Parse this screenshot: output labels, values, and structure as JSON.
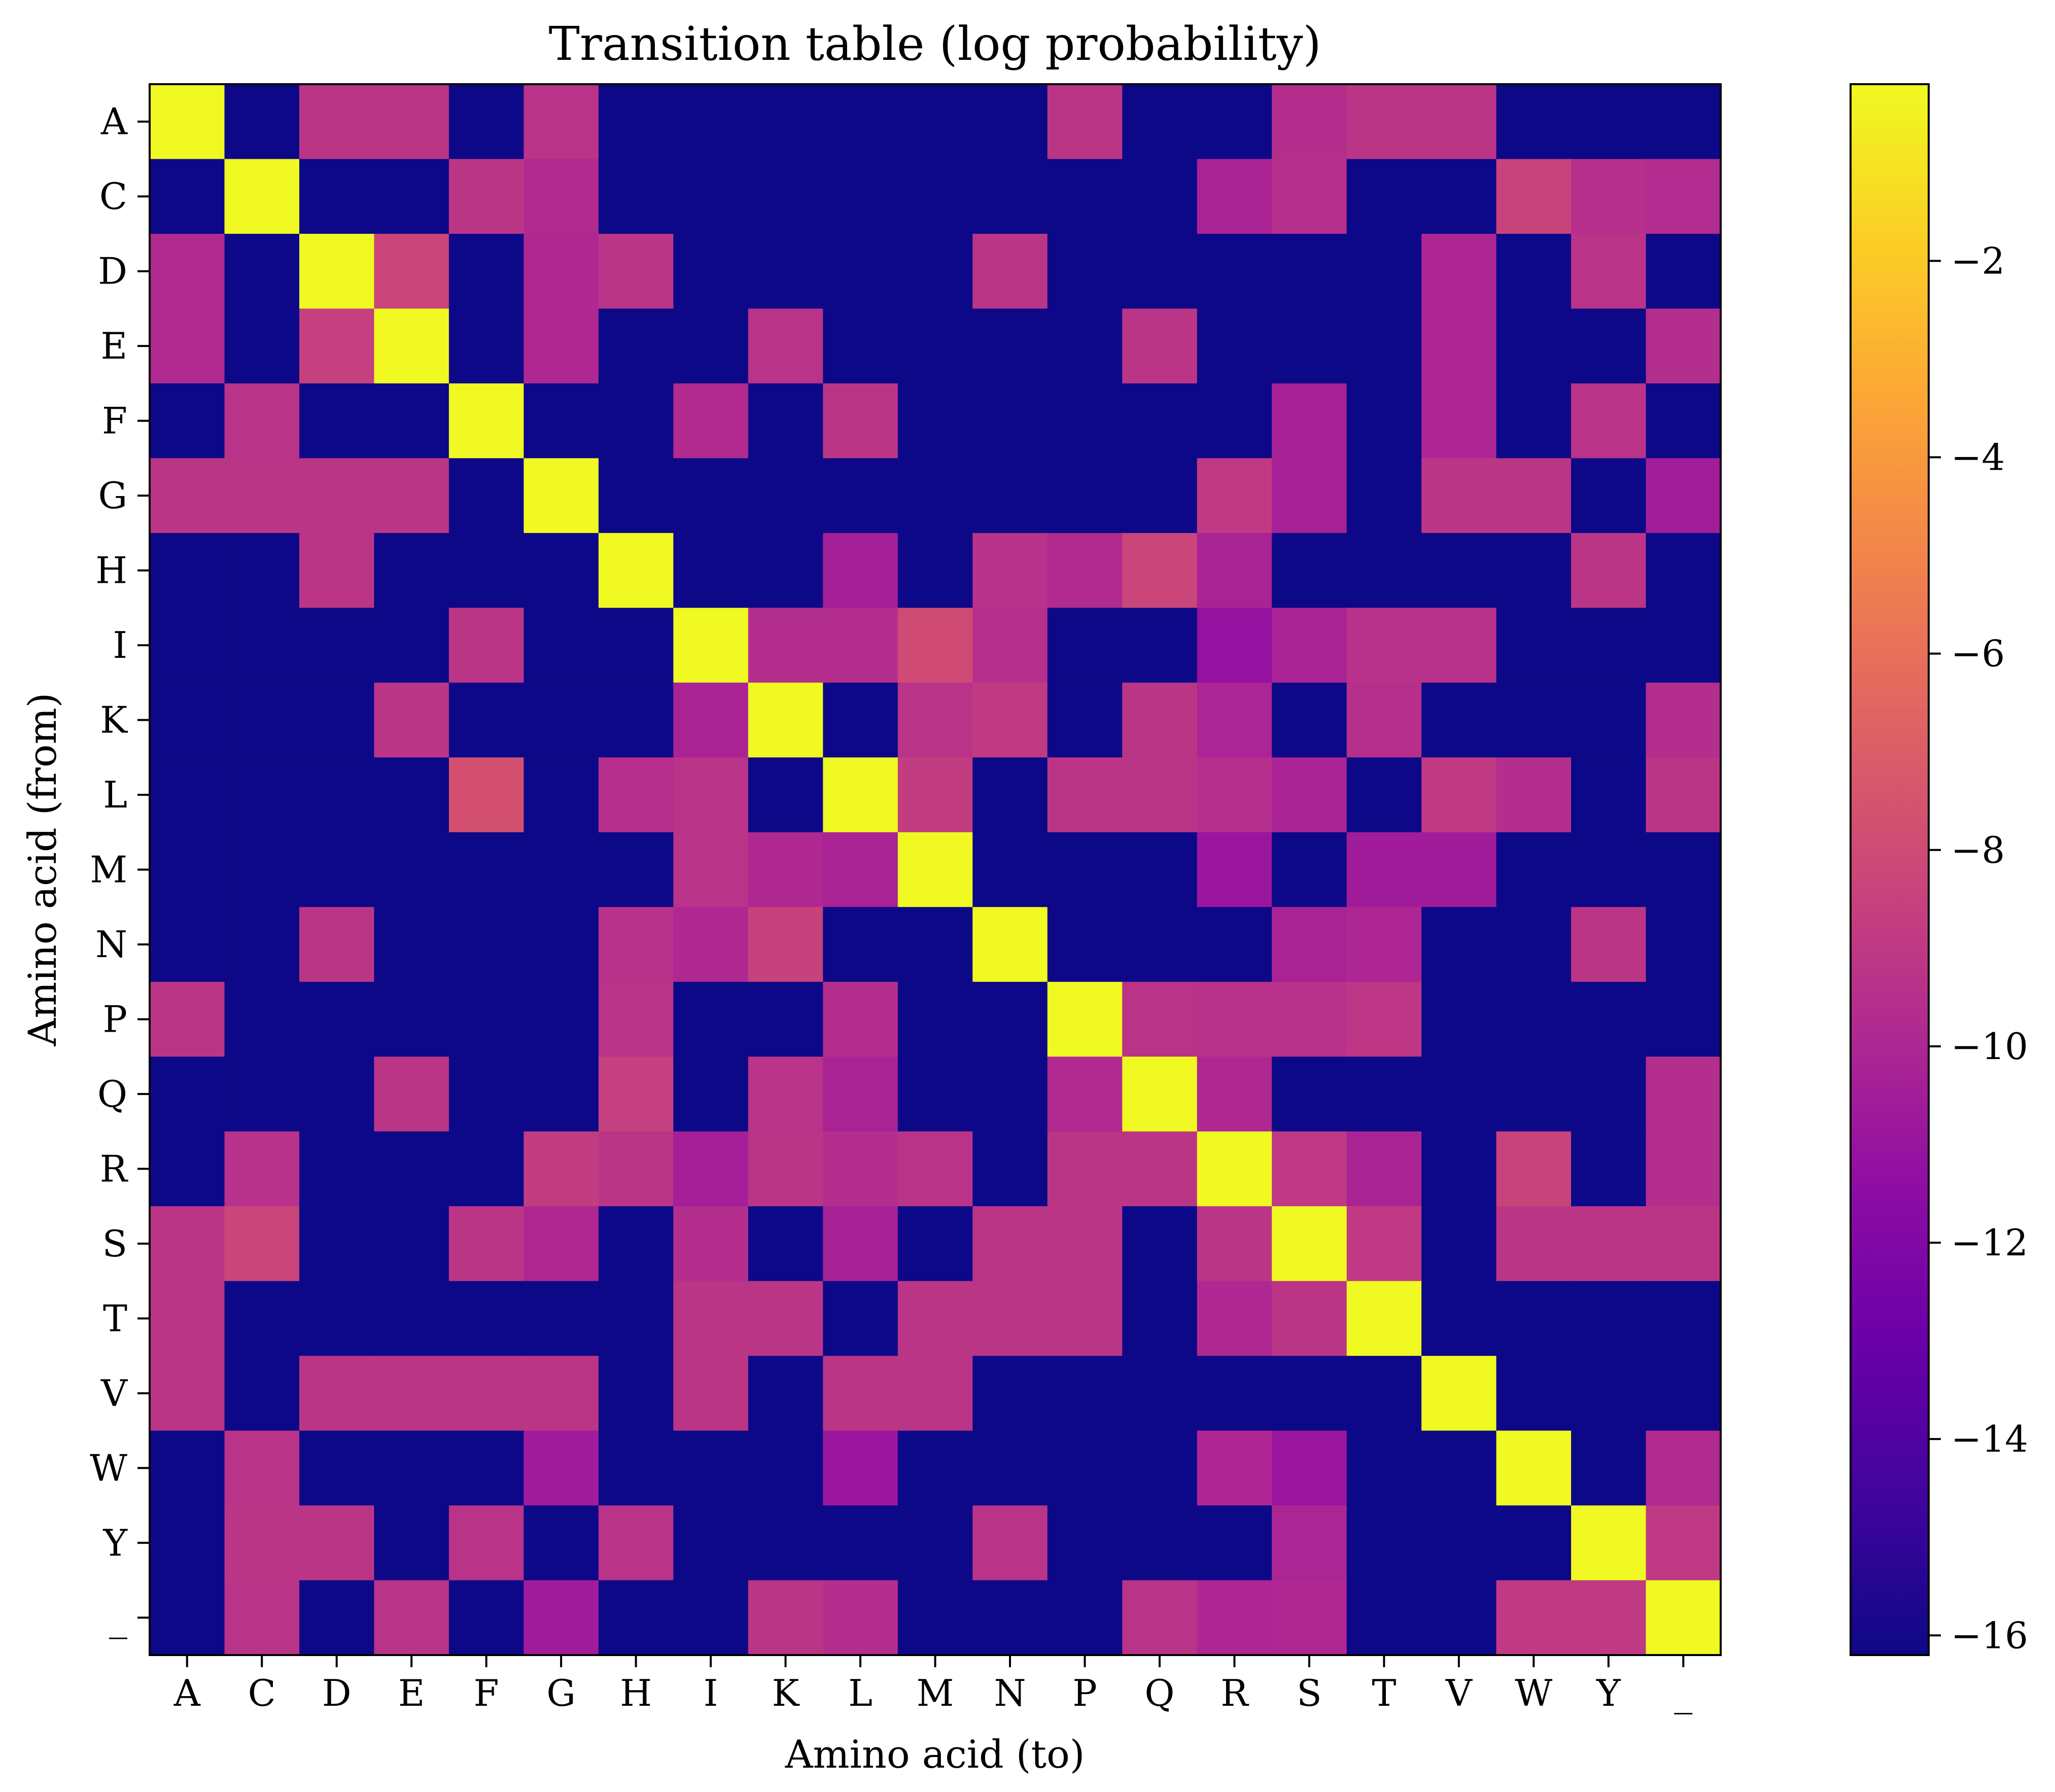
{
  "chart_data": {
    "type": "heatmap",
    "title": "Transition table (log probability)",
    "xlabel": "Amino acid (to)",
    "ylabel": "Amino acid (from)",
    "row_labels": [
      "A",
      "C",
      "D",
      "E",
      "F",
      "G",
      "H",
      "I",
      "K",
      "L",
      "M",
      "N",
      "P",
      "Q",
      "R",
      "S",
      "T",
      "V",
      "W",
      "Y",
      "_"
    ],
    "col_labels": [
      "A",
      "C",
      "D",
      "E",
      "F",
      "G",
      "H",
      "I",
      "K",
      "L",
      "M",
      "N",
      "P",
      "Q",
      "R",
      "S",
      "T",
      "V",
      "W",
      "Y",
      "_"
    ],
    "colormap": "plasma",
    "vmin": -16.2,
    "vmax": -0.2,
    "colorbar": {
      "ticks": [
        -2,
        -4,
        -6,
        -8,
        -10,
        -12,
        -14,
        -16
      ],
      "tick_labels": [
        "−2",
        "−4",
        "−6",
        "−8",
        "−10",
        "−12",
        "−14",
        "−16"
      ]
    },
    "values": [
      [
        -0.2,
        -16.2,
        -9.2,
        -9.2,
        -16.2,
        -9.3,
        -16.2,
        -16.2,
        -16.2,
        -16.2,
        -16.2,
        -16.2,
        -9.2,
        -16.2,
        -16.2,
        -9.6,
        -9.2,
        -9.2,
        -16.2,
        -16.2,
        -16.2
      ],
      [
        -16.2,
        -0.2,
        -16.2,
        -16.2,
        -9.2,
        -9.8,
        -16.2,
        -16.2,
        -16.2,
        -16.2,
        -16.2,
        -16.2,
        -16.2,
        -16.2,
        -10.2,
        -9.5,
        -16.2,
        -16.2,
        -8.4,
        -9.5,
        -9.7
      ],
      [
        -9.8,
        -16.2,
        -0.2,
        -8.3,
        -16.2,
        -9.9,
        -9.2,
        -16.2,
        -16.2,
        -16.2,
        -16.2,
        -9.2,
        -16.2,
        -16.2,
        -16.2,
        -16.2,
        -16.2,
        -10.0,
        -16.2,
        -9.3,
        -16.2
      ],
      [
        -9.8,
        -16.2,
        -8.6,
        -0.2,
        -16.2,
        -9.9,
        -16.2,
        -16.2,
        -9.3,
        -16.2,
        -16.2,
        -16.2,
        -16.2,
        -9.2,
        -16.2,
        -16.2,
        -16.2,
        -10.0,
        -16.2,
        -16.2,
        -9.6
      ],
      [
        -16.2,
        -9.3,
        -16.2,
        -16.2,
        -0.2,
        -16.2,
        -16.2,
        -9.8,
        -16.2,
        -9.2,
        -16.2,
        -16.2,
        -16.2,
        -16.2,
        -16.2,
        -10.3,
        -16.2,
        -10.0,
        -16.2,
        -9.3,
        -16.2
      ],
      [
        -9.2,
        -9.2,
        -9.2,
        -9.2,
        -16.2,
        -0.2,
        -16.2,
        -16.2,
        -16.2,
        -16.2,
        -16.2,
        -16.2,
        -16.2,
        -16.2,
        -8.9,
        -10.3,
        -16.2,
        -9.2,
        -9.2,
        -16.2,
        -10.5
      ],
      [
        -16.2,
        -16.2,
        -9.2,
        -16.2,
        -16.2,
        -16.2,
        -0.2,
        -16.2,
        -16.2,
        -10.4,
        -16.2,
        -9.4,
        -9.8,
        -8.3,
        -10.2,
        -16.2,
        -16.2,
        -16.2,
        -16.2,
        -9.2,
        -16.2
      ],
      [
        -16.2,
        -16.2,
        -16.2,
        -16.2,
        -9.2,
        -16.2,
        -16.2,
        -0.2,
        -9.6,
        -9.6,
        -8.0,
        -9.5,
        -16.2,
        -16.2,
        -11.1,
        -10.2,
        -9.4,
        -9.4,
        -16.2,
        -16.2,
        -16.2
      ],
      [
        -16.2,
        -16.2,
        -16.2,
        -9.2,
        -16.2,
        -16.2,
        -16.2,
        -10.2,
        -0.2,
        -16.2,
        -9.3,
        -8.9,
        -16.2,
        -9.2,
        -10.1,
        -16.2,
        -9.5,
        -16.2,
        -16.2,
        -16.2,
        -9.6
      ],
      [
        -16.2,
        -16.2,
        -16.2,
        -16.2,
        -7.7,
        -16.2,
        -9.5,
        -9.3,
        -16.2,
        -0.2,
        -8.8,
        -16.2,
        -9.2,
        -9.2,
        -9.5,
        -10.2,
        -16.2,
        -8.9,
        -9.6,
        -16.2,
        -9.2
      ],
      [
        -16.2,
        -16.2,
        -16.2,
        -16.2,
        -16.2,
        -16.2,
        -16.2,
        -9.3,
        -9.9,
        -10.2,
        -0.2,
        -16.2,
        -16.2,
        -16.2,
        -10.9,
        -16.2,
        -10.6,
        -10.6,
        -16.2,
        -16.2,
        -16.2
      ],
      [
        -16.2,
        -16.2,
        -9.2,
        -16.2,
        -16.2,
        -16.2,
        -9.4,
        -9.9,
        -8.5,
        -16.2,
        -16.2,
        -0.2,
        -16.2,
        -16.2,
        -16.2,
        -10.2,
        -10.0,
        -16.2,
        -16.2,
        -9.2,
        -16.2
      ],
      [
        -9.2,
        -16.2,
        -16.2,
        -16.2,
        -16.2,
        -16.2,
        -9.3,
        -16.2,
        -16.2,
        -9.6,
        -16.2,
        -16.2,
        -0.2,
        -9.3,
        -9.4,
        -9.4,
        -9.1,
        -16.2,
        -16.2,
        -16.2,
        -16.2
      ],
      [
        -16.2,
        -16.2,
        -16.2,
        -9.2,
        -16.2,
        -16.2,
        -8.6,
        -16.2,
        -9.3,
        -10.2,
        -16.2,
        -16.2,
        -9.8,
        -0.2,
        -9.9,
        -16.2,
        -16.2,
        -16.2,
        -16.2,
        -16.2,
        -9.6
      ],
      [
        -16.2,
        -9.4,
        -16.2,
        -16.2,
        -16.2,
        -8.8,
        -9.2,
        -10.4,
        -9.2,
        -9.6,
        -9.3,
        -16.2,
        -9.2,
        -9.2,
        -0.2,
        -9.0,
        -10.2,
        -16.2,
        -8.4,
        -16.2,
        -9.6
      ],
      [
        -9.2,
        -8.3,
        -16.2,
        -16.2,
        -9.2,
        -9.9,
        -16.2,
        -9.6,
        -16.2,
        -10.3,
        -16.2,
        -9.2,
        -9.2,
        -16.2,
        -9.2,
        -0.2,
        -9.0,
        -16.2,
        -9.2,
        -9.2,
        -9.2
      ],
      [
        -9.2,
        -16.2,
        -16.2,
        -16.2,
        -16.2,
        -16.2,
        -16.2,
        -9.2,
        -9.2,
        -16.2,
        -9.2,
        -9.2,
        -9.2,
        -16.2,
        -9.9,
        -9.2,
        -0.2,
        -16.2,
        -16.2,
        -16.2,
        -16.2
      ],
      [
        -9.2,
        -16.2,
        -9.2,
        -9.2,
        -9.2,
        -9.2,
        -16.2,
        -9.2,
        -16.2,
        -9.2,
        -9.2,
        -16.2,
        -16.2,
        -16.2,
        -16.2,
        -16.2,
        -16.2,
        -0.2,
        -16.2,
        -16.2,
        -16.2
      ],
      [
        -16.2,
        -9.3,
        -16.2,
        -16.2,
        -16.2,
        -10.6,
        -16.2,
        -16.2,
        -16.2,
        -10.9,
        -16.2,
        -16.2,
        -16.2,
        -16.2,
        -10.0,
        -10.9,
        -16.2,
        -16.2,
        -0.2,
        -16.2,
        -9.8
      ],
      [
        -16.2,
        -9.2,
        -9.2,
        -16.2,
        -9.3,
        -16.2,
        -9.3,
        -16.2,
        -16.2,
        -16.2,
        -16.2,
        -9.3,
        -16.2,
        -16.2,
        -16.2,
        -10.1,
        -16.2,
        -16.2,
        -16.2,
        -0.2,
        -9.0
      ],
      [
        -16.2,
        -9.3,
        -16.2,
        -9.3,
        -16.2,
        -10.6,
        -16.2,
        -16.2,
        -9.2,
        -9.6,
        -16.2,
        -16.2,
        -16.2,
        -9.3,
        -10.0,
        -9.9,
        -16.2,
        -16.2,
        -8.9,
        -8.9,
        -0.2
      ]
    ]
  }
}
